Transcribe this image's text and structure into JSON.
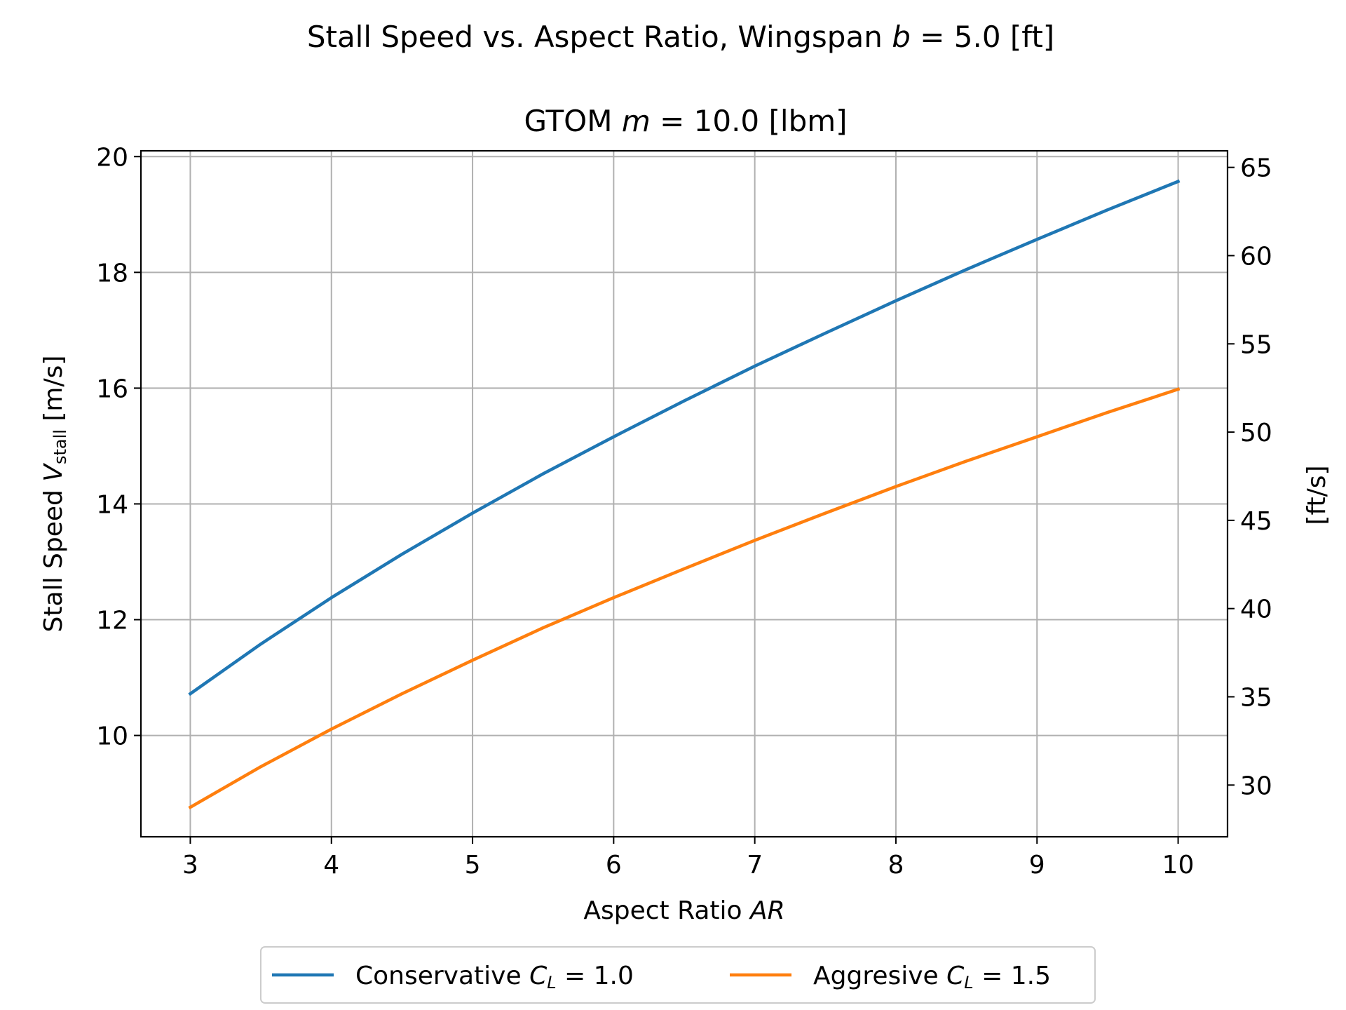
{
  "chart_data": {
    "type": "line",
    "title": "Stall Speed vs. Aspect Ratio, Wingspan b = 5.0 [ft]",
    "title_parts": {
      "pre": "Stall Speed vs. Aspect Ratio, Wingspan ",
      "var": "b",
      "post": " = 5.0 [ft]"
    },
    "subtitle": "GTOM m = 10.0 [lbm]",
    "subtitle_parts": {
      "pre": "GTOM ",
      "var": "m",
      "post": " = 10.0 [lbm]"
    },
    "xlabel": "Aspect Ratio AR",
    "xlabel_parts": {
      "pre": "Aspect Ratio ",
      "var": "AR"
    },
    "ylabel": "Stall Speed V_stall [m/s]",
    "ylabel_parts": {
      "pre": "Stall Speed ",
      "var": "V",
      "sub": "stall",
      "post": " [m/s]"
    },
    "y2label": "[ft/s]",
    "xlim": [
      2.65,
      10.35
    ],
    "ylim": [
      8.25,
      20.1
    ],
    "y2lim": [
      27.07,
      65.94
    ],
    "xticks": [
      3,
      4,
      5,
      6,
      7,
      8,
      9,
      10
    ],
    "yticks": [
      10,
      12,
      14,
      16,
      18,
      20
    ],
    "y2ticks": [
      30,
      35,
      40,
      45,
      50,
      55,
      60,
      65
    ],
    "grid": true,
    "legend": {
      "position": "bottom-center-outside",
      "columns": 2
    },
    "series": [
      {
        "name": "Conservative C_L = 1.0",
        "name_parts": {
          "pre": "Conservative ",
          "var": "C",
          "sub": "L",
          "post": " = 1.0"
        },
        "color": "#1f77b4",
        "x": [
          3,
          3.5,
          4,
          4.5,
          5,
          5.5,
          6,
          6.5,
          7,
          7.5,
          8,
          8.5,
          9,
          9.5,
          10
        ],
        "y": [
          10.72,
          11.58,
          12.38,
          13.13,
          13.84,
          14.52,
          15.16,
          15.78,
          16.38,
          16.95,
          17.51,
          18.05,
          18.57,
          19.08,
          19.57
        ]
      },
      {
        "name": "Aggresive C_L = 1.5",
        "name_parts": {
          "pre": "Aggresive ",
          "var": "C",
          "sub": "L",
          "post": " = 1.5"
        },
        "color": "#ff7f0e",
        "x": [
          3,
          3.5,
          4,
          4.5,
          5,
          5.5,
          6,
          6.5,
          7,
          7.5,
          8,
          8.5,
          9,
          9.5,
          10
        ],
        "y": [
          8.76,
          9.46,
          10.11,
          10.72,
          11.3,
          11.86,
          12.38,
          12.88,
          13.37,
          13.84,
          14.3,
          14.74,
          15.16,
          15.58,
          15.98
        ]
      }
    ]
  }
}
